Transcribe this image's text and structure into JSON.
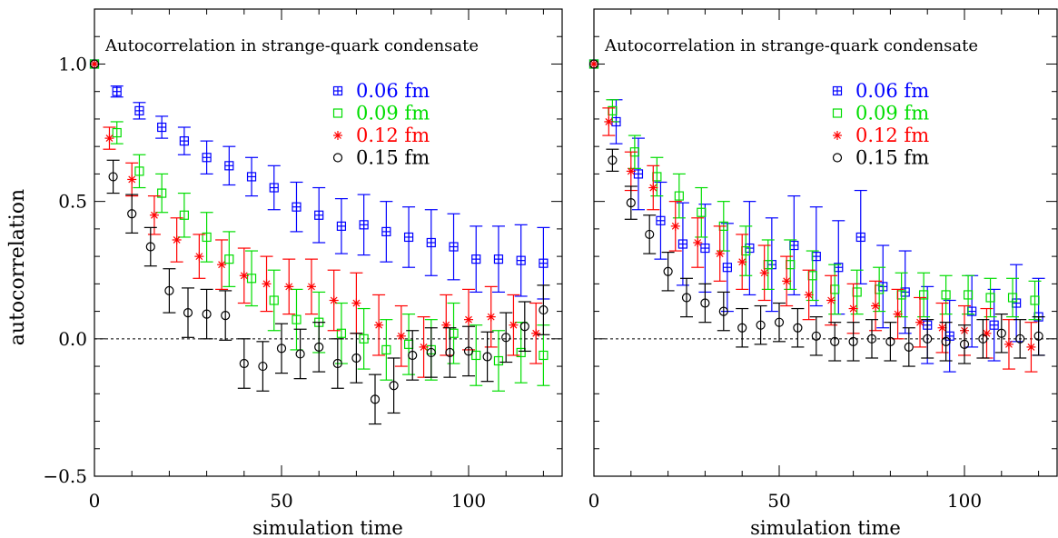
{
  "colors": {
    "0.06 fm": "#0000ff",
    "0.09 fm": "#00dd00",
    "0.12 fm": "#ff0000",
    "0.15 fm": "#000000"
  },
  "ylabel": "autocorrelation",
  "chart_data": [
    {
      "type": "scatter",
      "title": "Autocorrelation in strange-quark condensate",
      "xlabel": "simulation time",
      "ylabel": "autocorrelation",
      "xlim": [
        0,
        125
      ],
      "ylim": [
        -0.5,
        1.2
      ],
      "xticks": [
        0,
        50,
        100
      ],
      "yticks": [
        -0.5,
        0.0,
        0.5,
        1.0
      ],
      "ytick_labels": [
        "−0.5",
        "0.0",
        "0.5",
        "1.0"
      ],
      "reference_line": {
        "y": 0,
        "style": "dashed"
      },
      "legend_position": "top-right",
      "series": [
        {
          "name": "0.06 fm",
          "marker": "plus-square",
          "x": [
            0,
            6,
            12,
            18,
            24,
            30,
            36,
            42,
            48,
            54,
            60,
            66,
            72,
            78,
            84,
            90,
            96,
            102,
            108,
            114,
            120
          ],
          "y": [
            1.0,
            0.9,
            0.83,
            0.77,
            0.72,
            0.66,
            0.63,
            0.59,
            0.55,
            0.48,
            0.45,
            0.41,
            0.415,
            0.39,
            0.37,
            0.35,
            0.335,
            0.29,
            0.29,
            0.285,
            0.275
          ],
          "err": [
            0,
            0.02,
            0.03,
            0.04,
            0.05,
            0.06,
            0.07,
            0.07,
            0.08,
            0.09,
            0.1,
            0.1,
            0.11,
            0.11,
            0.11,
            0.12,
            0.12,
            0.12,
            0.12,
            0.13,
            0.13
          ]
        },
        {
          "name": "0.09 fm",
          "marker": "square",
          "x": [
            0,
            6,
            12,
            18,
            24,
            30,
            36,
            42,
            48,
            54,
            60,
            66,
            72,
            78,
            84,
            90,
            96,
            102,
            108,
            114,
            120
          ],
          "y": [
            1.0,
            0.75,
            0.61,
            0.53,
            0.45,
            0.37,
            0.29,
            0.22,
            0.14,
            0.07,
            0.06,
            0.02,
            0.0,
            -0.04,
            -0.02,
            -0.04,
            0.02,
            -0.06,
            -0.08,
            -0.05,
            -0.06
          ],
          "err": [
            0,
            0.04,
            0.06,
            0.07,
            0.08,
            0.09,
            0.1,
            0.1,
            0.11,
            0.11,
            0.11,
            0.11,
            0.11,
            0.11,
            0.11,
            0.11,
            0.11,
            0.11,
            0.11,
            0.11,
            0.11
          ]
        },
        {
          "name": "0.12 fm",
          "marker": "asterisk",
          "x": [
            0,
            4,
            10,
            16,
            22,
            28,
            34,
            40,
            46,
            52,
            58,
            64,
            70,
            76,
            82,
            88,
            94,
            100,
            106,
            112,
            118
          ],
          "y": [
            1.0,
            0.73,
            0.58,
            0.45,
            0.36,
            0.3,
            0.27,
            0.23,
            0.2,
            0.19,
            0.19,
            0.14,
            0.13,
            0.05,
            0.01,
            -0.03,
            0.05,
            0.07,
            0.08,
            0.05,
            0.02
          ],
          "err": [
            0,
            0.04,
            0.06,
            0.07,
            0.08,
            0.08,
            0.09,
            0.1,
            0.1,
            0.1,
            0.1,
            0.11,
            0.11,
            0.11,
            0.11,
            0.11,
            0.11,
            0.11,
            0.11,
            0.11,
            0.11
          ]
        },
        {
          "name": "0.15 fm",
          "marker": "circle",
          "x": [
            0,
            5,
            10,
            15,
            20,
            25,
            30,
            35,
            40,
            45,
            50,
            55,
            60,
            65,
            70,
            75,
            80,
            85,
            90,
            95,
            100,
            105,
            110,
            115,
            120
          ],
          "y": [
            1.0,
            0.59,
            0.455,
            0.335,
            0.175,
            0.095,
            0.09,
            0.085,
            -0.09,
            -0.1,
            -0.035,
            -0.055,
            -0.03,
            -0.09,
            -0.07,
            -0.22,
            -0.17,
            -0.06,
            -0.05,
            -0.05,
            -0.045,
            -0.065,
            0.005,
            0.045,
            0.105
          ],
          "err": [
            0,
            0.06,
            0.07,
            0.07,
            0.08,
            0.09,
            0.09,
            0.09,
            0.09,
            0.09,
            0.09,
            0.09,
            0.09,
            0.09,
            0.09,
            0.09,
            0.1,
            0.09,
            0.09,
            0.09,
            0.09,
            0.09,
            0.09,
            0.09,
            0.09
          ]
        }
      ]
    },
    {
      "type": "scatter",
      "title": "Autocorrelation in strange-quark condensate",
      "xlabel": "simulation time",
      "ylabel": "",
      "xlim": [
        0,
        125
      ],
      "ylim": [
        -0.5,
        1.2
      ],
      "xticks": [
        0,
        50,
        100
      ],
      "yticks": [
        -0.5,
        0.0,
        0.5,
        1.0
      ],
      "reference_line": {
        "y": 0,
        "style": "dashed"
      },
      "legend_position": "top-right",
      "series": [
        {
          "name": "0.06 fm",
          "marker": "plus-square",
          "x": [
            0,
            6,
            12,
            18,
            24,
            30,
            36,
            42,
            48,
            54,
            60,
            66,
            72,
            78,
            84,
            90,
            96,
            102,
            108,
            114,
            120
          ],
          "y": [
            1.0,
            0.79,
            0.6,
            0.43,
            0.345,
            0.33,
            0.26,
            0.33,
            0.27,
            0.34,
            0.3,
            0.26,
            0.37,
            0.19,
            0.17,
            0.05,
            0.01,
            0.1,
            0.05,
            0.13,
            0.08
          ],
          "err": [
            0,
            0.08,
            0.13,
            0.14,
            0.15,
            0.16,
            0.16,
            0.17,
            0.17,
            0.18,
            0.18,
            0.17,
            0.17,
            0.15,
            0.15,
            0.14,
            0.13,
            0.13,
            0.13,
            0.14,
            0.14
          ]
        },
        {
          "name": "0.09 fm",
          "marker": "square",
          "x": [
            0,
            5,
            11,
            17,
            23,
            29,
            35,
            41,
            47,
            53,
            59,
            65,
            71,
            77,
            83,
            89,
            95,
            101,
            107,
            113,
            119
          ],
          "y": [
            1.0,
            0.83,
            0.68,
            0.59,
            0.52,
            0.46,
            0.41,
            0.32,
            0.27,
            0.27,
            0.23,
            0.18,
            0.17,
            0.18,
            0.16,
            0.16,
            0.16,
            0.16,
            0.15,
            0.15,
            0.14
          ],
          "err": [
            0,
            0.04,
            0.06,
            0.07,
            0.08,
            0.09,
            0.09,
            0.09,
            0.09,
            0.09,
            0.09,
            0.09,
            0.08,
            0.08,
            0.08,
            0.08,
            0.07,
            0.07,
            0.07,
            0.07,
            0.07
          ]
        },
        {
          "name": "0.12 fm",
          "marker": "asterisk",
          "x": [
            0,
            4,
            10,
            16,
            22,
            28,
            34,
            40,
            46,
            52,
            58,
            64,
            70,
            76,
            82,
            88,
            94,
            100,
            106,
            112,
            118
          ],
          "y": [
            1.0,
            0.79,
            0.61,
            0.55,
            0.41,
            0.35,
            0.31,
            0.28,
            0.24,
            0.21,
            0.16,
            0.14,
            0.11,
            0.12,
            0.09,
            0.06,
            0.04,
            0.03,
            0.02,
            -0.02,
            -0.03
          ],
          "err": [
            0,
            0.05,
            0.07,
            0.08,
            0.09,
            0.09,
            0.1,
            0.1,
            0.1,
            0.09,
            0.09,
            0.09,
            0.09,
            0.09,
            0.09,
            0.09,
            0.09,
            0.09,
            0.09,
            0.09,
            0.09
          ]
        },
        {
          "name": "0.15 fm",
          "marker": "circle",
          "x": [
            0,
            5,
            10,
            15,
            20,
            25,
            30,
            35,
            40,
            45,
            50,
            55,
            60,
            65,
            70,
            75,
            80,
            85,
            90,
            95,
            100,
            105,
            110,
            115,
            120
          ],
          "y": [
            1.0,
            0.65,
            0.495,
            0.38,
            0.245,
            0.15,
            0.13,
            0.1,
            0.04,
            0.05,
            0.06,
            0.04,
            0.01,
            -0.01,
            -0.01,
            0.0,
            -0.01,
            -0.03,
            0.0,
            -0.01,
            -0.02,
            0.0,
            0.02,
            0.0,
            0.01
          ],
          "err": [
            0,
            0.04,
            0.06,
            0.07,
            0.07,
            0.07,
            0.07,
            0.07,
            0.07,
            0.07,
            0.07,
            0.07,
            0.07,
            0.07,
            0.07,
            0.07,
            0.07,
            0.07,
            0.07,
            0.07,
            0.07,
            0.07,
            0.07,
            0.07,
            0.07
          ]
        }
      ]
    }
  ]
}
